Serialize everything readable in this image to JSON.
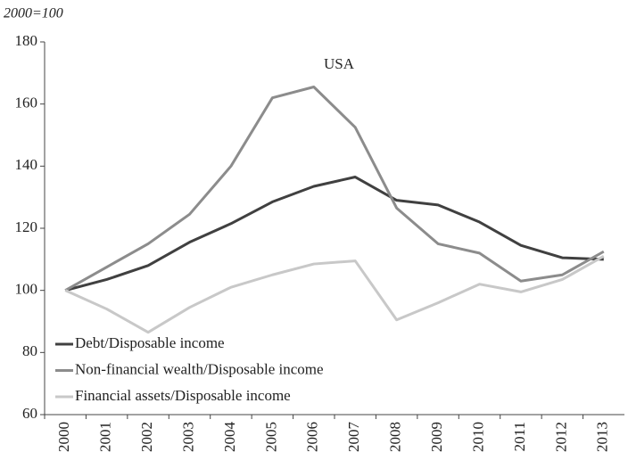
{
  "chart_data": {
    "type": "line",
    "title": "USA",
    "y_unit_label": "2000=100",
    "categories": [
      "2000",
      "2001",
      "2002",
      "2003",
      "2004",
      "2005",
      "2006",
      "2007",
      "2008",
      "2009",
      "2010",
      "2011",
      "2012",
      "2013"
    ],
    "series": [
      {
        "name": "Debt/Disposable income",
        "color": "#404040",
        "values": [
          100,
          103.5,
          108,
          115.5,
          121.5,
          128.5,
          133.5,
          136.5,
          129,
          127.5,
          122,
          114.5,
          110.5,
          110
        ]
      },
      {
        "name": "Non-financial wealth/Disposable income",
        "color": "#8c8c8c",
        "values": [
          100,
          107.5,
          115,
          124.5,
          140,
          162,
          165.5,
          152.5,
          126.5,
          115,
          112,
          103,
          105,
          112.5
        ]
      },
      {
        "name": "Financial assets/Disposable income",
        "color": "#c8c8c8",
        "values": [
          100,
          94,
          86.5,
          94.5,
          101,
          105,
          108.5,
          109.5,
          90.5,
          96,
          102,
          99.5,
          103.5,
          111
        ]
      }
    ],
    "ylim": [
      60,
      180
    ],
    "yticks": [
      60,
      80,
      100,
      120,
      140,
      160,
      180
    ],
    "grid": false,
    "legend": "lower left"
  }
}
